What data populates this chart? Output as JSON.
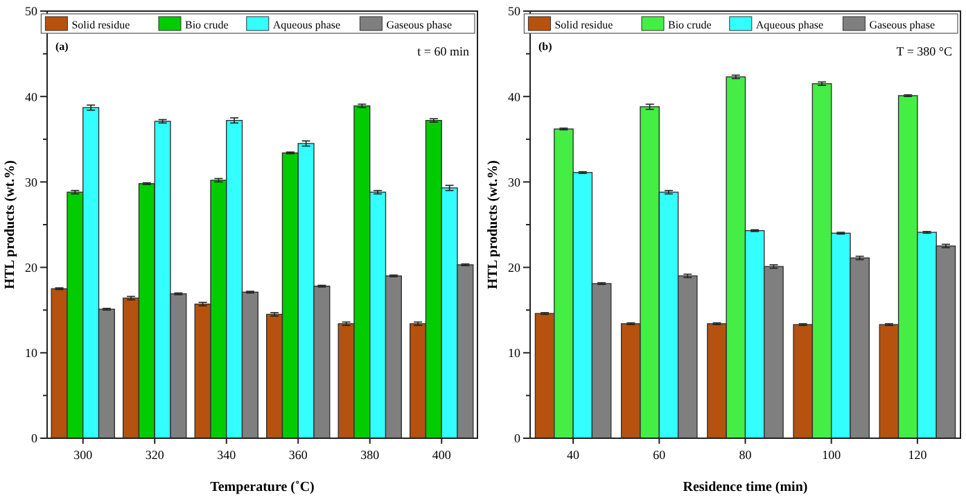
{
  "chart_data": [
    {
      "type": "bar",
      "xlabel": "Temperature (˚C)",
      "ylabel": "HTL products (wt.%)",
      "categories": [
        "300",
        "320",
        "340",
        "360",
        "380",
        "400"
      ],
      "ylim": [
        0,
        50
      ],
      "yticks": [
        0,
        {
          "value": 5,
          "label": null
        },
        10,
        {
          "value": 15,
          "label": null
        },
        20,
        {
          "value": 25,
          "label": null
        },
        30,
        {
          "value": 35,
          "label": null
        },
        40,
        {
          "value": 45,
          "label": null
        },
        50
      ],
      "legend": "top right",
      "annotations": [
        "(a)",
        "t = 60 min"
      ],
      "series": [
        {
          "name": "Solid residue",
          "color": "#b5520f",
          "values": [
            17.5,
            16.4,
            15.7,
            14.5,
            13.4,
            13.4
          ],
          "errors": [
            0.1,
            0.2,
            0.2,
            0.2,
            0.2,
            0.2
          ]
        },
        {
          "name": "Bio crude",
          "color": "#00cc00",
          "values": [
            28.8,
            29.8,
            30.2,
            33.4,
            38.9,
            37.2
          ],
          "errors": [
            0.2,
            0.1,
            0.2,
            0.1,
            0.2,
            0.2
          ]
        },
        {
          "name": "Aqueous phase",
          "color": "#33ffff",
          "values": [
            38.7,
            37.1,
            37.2,
            34.5,
            28.8,
            29.3
          ],
          "errors": [
            0.3,
            0.2,
            0.3,
            0.3,
            0.2,
            0.3
          ]
        },
        {
          "name": "Gaseous phase",
          "color": "#7f7f7f",
          "values": [
            15.1,
            16.9,
            17.1,
            17.8,
            19.0,
            20.3
          ],
          "errors": [
            0.1,
            0.1,
            0.1,
            0.1,
            0.1,
            0.1
          ]
        }
      ]
    },
    {
      "type": "bar",
      "xlabel": "Residence time (min)",
      "ylabel": "HTL products (wt.%)",
      "categories": [
        "40",
        "60",
        "80",
        "100",
        "120"
      ],
      "ylim": [
        0,
        50
      ],
      "yticks": [
        0,
        {
          "value": 5,
          "label": null
        },
        10,
        {
          "value": 15,
          "label": null
        },
        20,
        {
          "value": 25,
          "label": null
        },
        30,
        {
          "value": 35,
          "label": null
        },
        40,
        {
          "value": 45,
          "label": null
        },
        50
      ],
      "legend": "top right",
      "annotations": [
        "(b)",
        "T = 380 °C"
      ],
      "series": [
        {
          "name": "Solid residue",
          "color": "#b5520f",
          "values": [
            14.6,
            13.4,
            13.4,
            13.3,
            13.3
          ],
          "errors": [
            0.1,
            0.1,
            0.1,
            0.1,
            0.1
          ]
        },
        {
          "name": "Bio crude",
          "color": "#44ee44",
          "values": [
            36.2,
            38.8,
            42.3,
            41.5,
            40.1
          ],
          "errors": [
            0.1,
            0.3,
            0.2,
            0.2,
            0.1
          ]
        },
        {
          "name": "Aqueous phase",
          "color": "#33ffff",
          "values": [
            31.1,
            28.8,
            24.3,
            24.0,
            24.1
          ],
          "errors": [
            0.1,
            0.2,
            0.1,
            0.1,
            0.1
          ]
        },
        {
          "name": "Gaseous phase",
          "color": "#7f7f7f",
          "values": [
            18.1,
            19.0,
            20.1,
            21.1,
            22.5
          ],
          "errors": [
            0.1,
            0.2,
            0.2,
            0.2,
            0.2
          ]
        }
      ]
    }
  ]
}
